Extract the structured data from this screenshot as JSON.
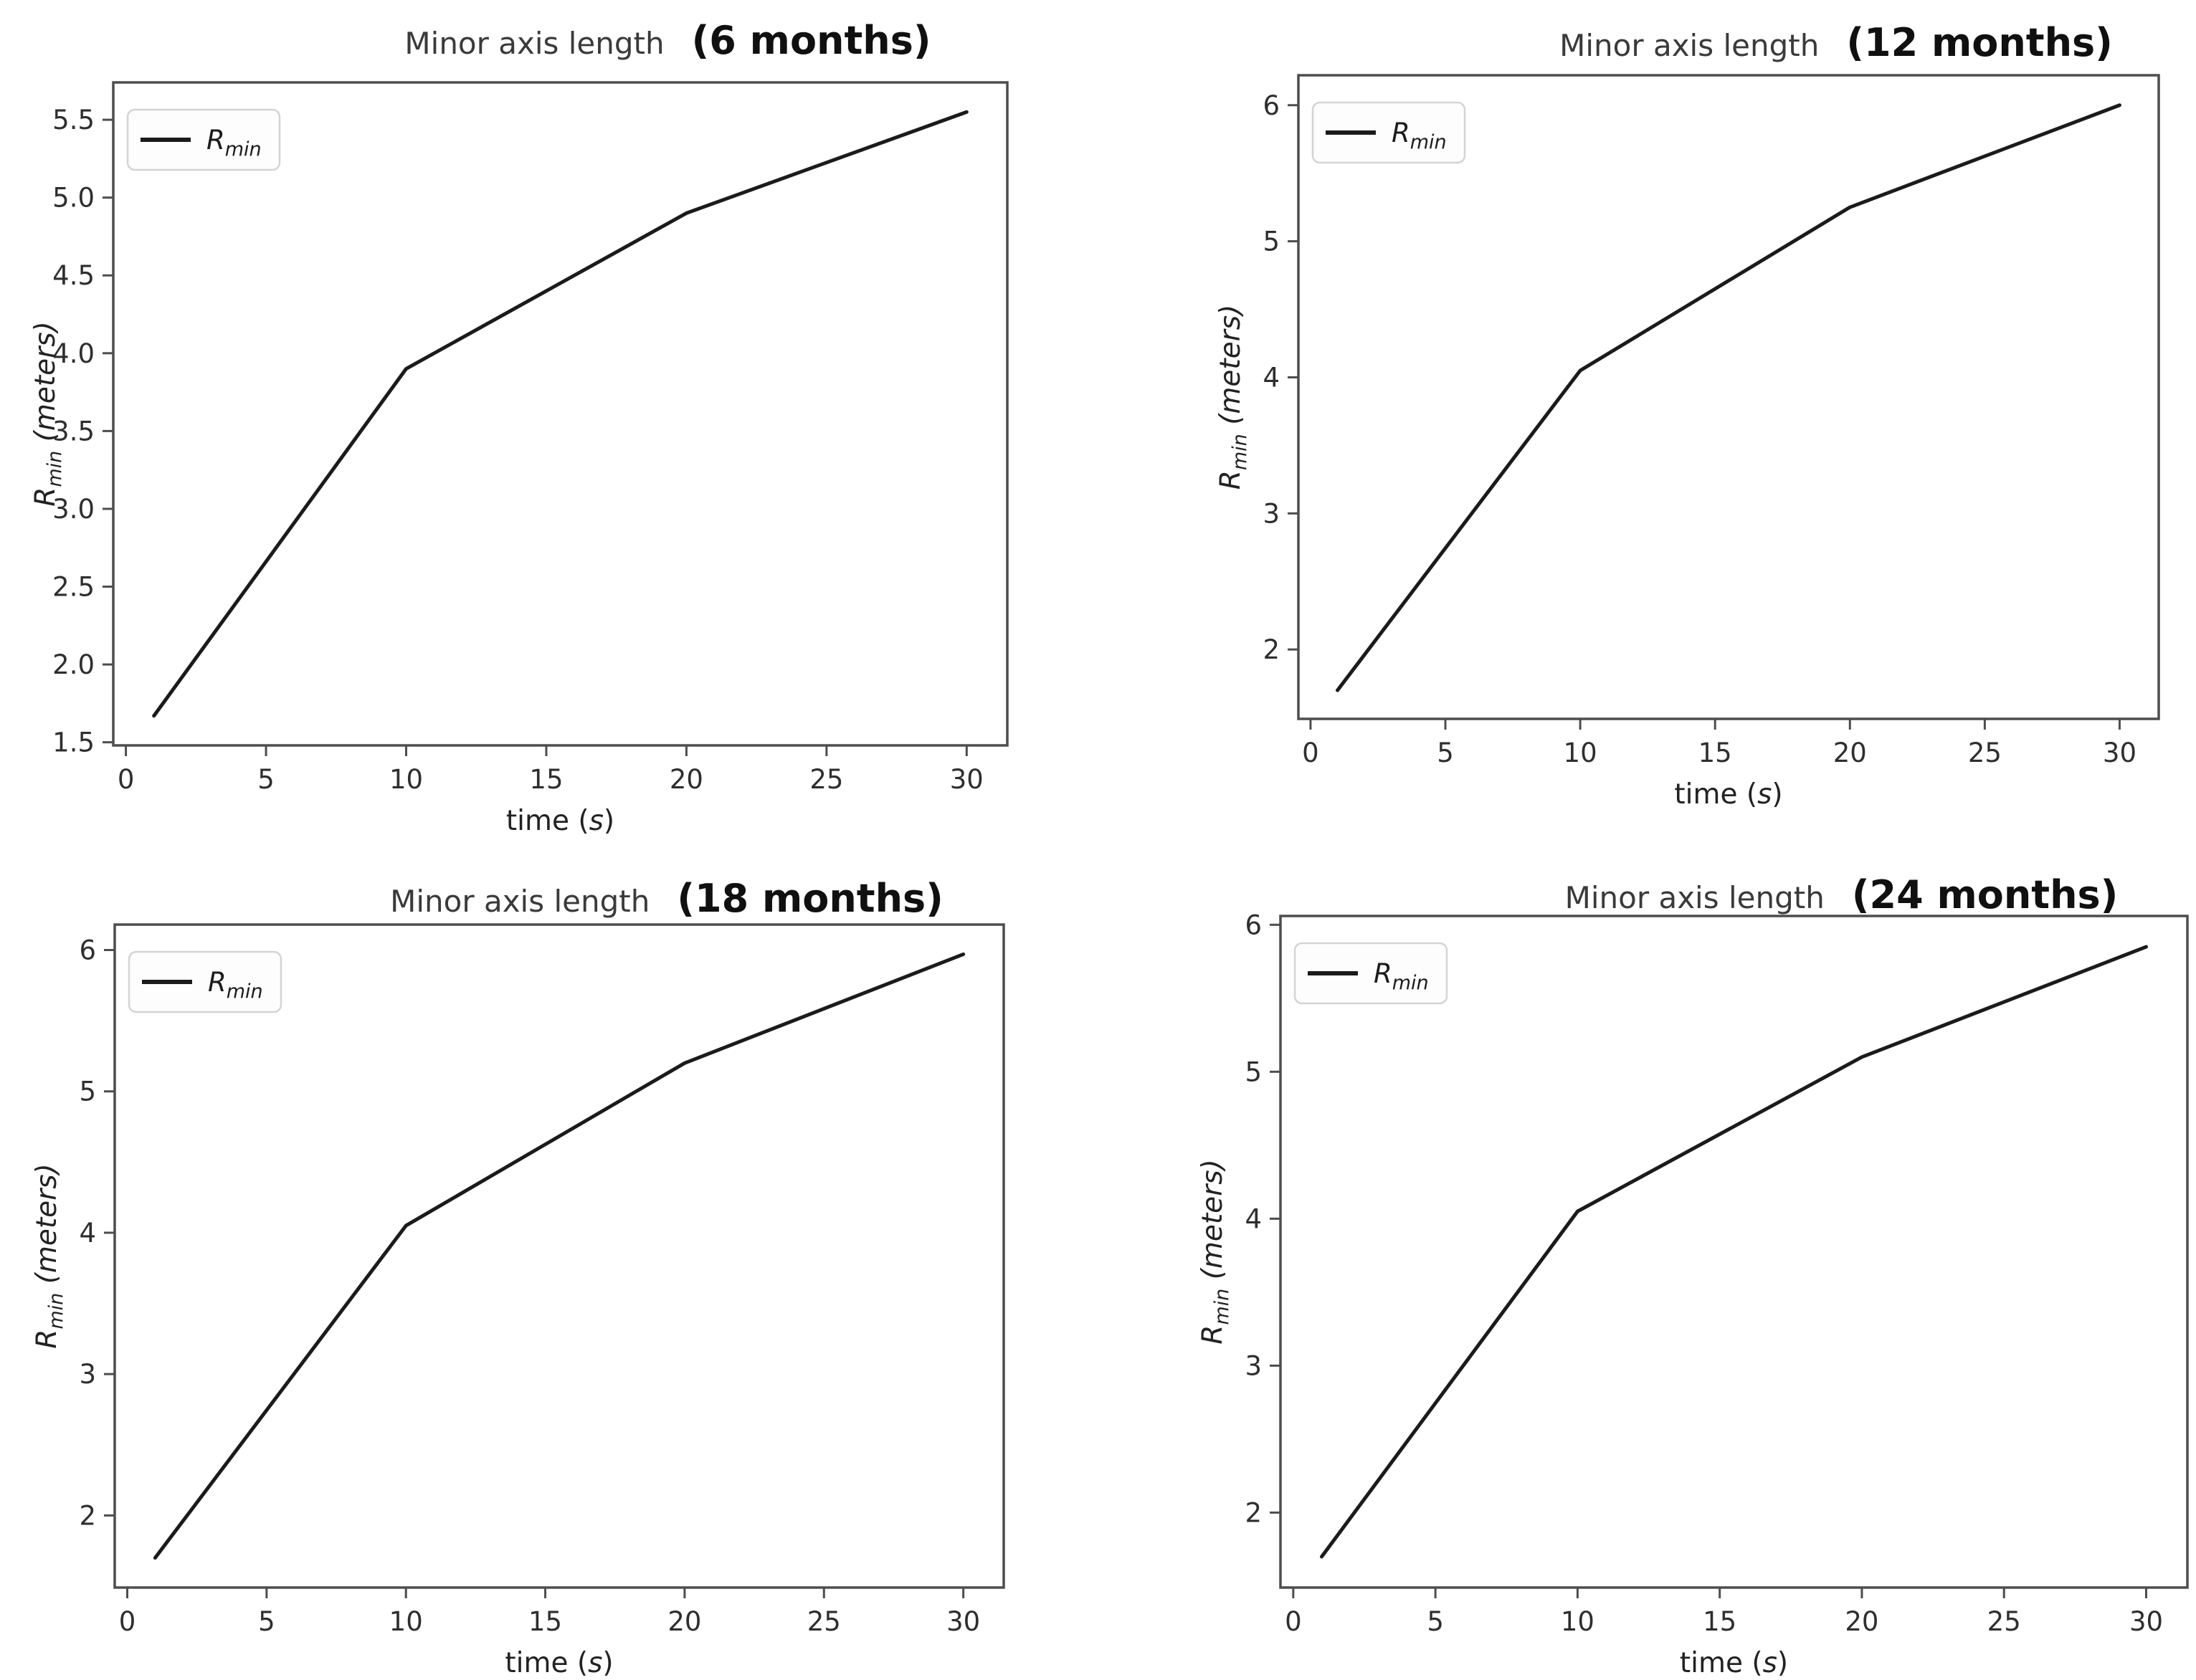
{
  "figure": {
    "background": "#ffffff",
    "panel_count": 4,
    "colors": {
      "line": "#1b1b1b",
      "spine": "#4d4d4d",
      "tick_text": "#2e2e2e",
      "legend_border": "#d4d4d4",
      "legend_fill": "#fdfdfd"
    }
  },
  "chart_data": [
    {
      "type": "line",
      "title": "Minor axis length",
      "subtitle": "(6 months)",
      "xlabel": "time (s)",
      "ylabel": "R_min (meters)",
      "xlabel_parts": {
        "pre": "time (",
        "var": "s",
        "post": ")"
      },
      "ylabel_parts": {
        "main": "R",
        "sub": "min",
        "rest": " (meters)"
      },
      "legend": {
        "position": "upper left",
        "entries": [
          {
            "label": "R_min",
            "main": "R",
            "sub": "min"
          }
        ]
      },
      "grid": false,
      "series": [
        {
          "name": "R_min",
          "x": [
            1,
            10,
            20,
            30
          ],
          "y": [
            1.67,
            3.9,
            4.9,
            5.55
          ]
        }
      ],
      "xlim": [
        -0.45,
        31.45
      ],
      "ylim": [
        1.48,
        5.74
      ],
      "xticks": [
        0,
        5,
        10,
        15,
        20,
        25,
        30
      ],
      "xtick_labels": [
        "0",
        "5",
        "10",
        "15",
        "20",
        "25",
        "30"
      ],
      "yticks": [
        1.5,
        2.0,
        2.5,
        3.0,
        3.5,
        4.0,
        4.5,
        5.0,
        5.5
      ],
      "ytick_labels": [
        "1.5",
        "2.0",
        "2.5",
        "3.0",
        "3.5",
        "4.0",
        "4.5",
        "5.0",
        "5.5"
      ],
      "colors": {
        "line": "#1b1b1b",
        "spine": "#4d4d4d"
      }
    },
    {
      "type": "line",
      "title": "Minor axis length",
      "subtitle": "(12 months)",
      "xlabel": "time (s)",
      "ylabel": "R_min (meters)",
      "xlabel_parts": {
        "pre": "time (",
        "var": "s",
        "post": ")"
      },
      "ylabel_parts": {
        "main": "R",
        "sub": "min",
        "rest": " (meters)"
      },
      "legend": {
        "position": "upper left",
        "entries": [
          {
            "label": "R_min",
            "main": "R",
            "sub": "min"
          }
        ]
      },
      "grid": false,
      "series": [
        {
          "name": "R_min",
          "x": [
            1,
            10,
            20,
            30
          ],
          "y": [
            1.7,
            4.05,
            5.25,
            6.0
          ]
        }
      ],
      "xlim": [
        -0.45,
        31.45
      ],
      "ylim": [
        1.49,
        6.22
      ],
      "xticks": [
        0,
        5,
        10,
        15,
        20,
        25,
        30
      ],
      "xtick_labels": [
        "0",
        "5",
        "10",
        "15",
        "20",
        "25",
        "30"
      ],
      "yticks": [
        2,
        3,
        4,
        5,
        6
      ],
      "ytick_labels": [
        "2",
        "3",
        "4",
        "5",
        "6"
      ],
      "colors": {
        "line": "#1b1b1b",
        "spine": "#4d4d4d"
      }
    },
    {
      "type": "line",
      "title": "Minor axis length",
      "subtitle": "(18 months)",
      "xlabel": "time (s)",
      "ylabel": "R_min (meters)",
      "xlabel_parts": {
        "pre": "time (",
        "var": "s",
        "post": ")"
      },
      "ylabel_parts": {
        "main": "R",
        "sub": "min",
        "rest": " (meters)"
      },
      "legend": {
        "position": "upper left",
        "entries": [
          {
            "label": "R_min",
            "main": "R",
            "sub": "min"
          }
        ]
      },
      "grid": false,
      "series": [
        {
          "name": "R_min",
          "x": [
            1,
            10,
            20,
            30
          ],
          "y": [
            1.7,
            4.05,
            5.2,
            5.97
          ]
        }
      ],
      "xlim": [
        -0.45,
        31.45
      ],
      "ylim": [
        1.49,
        6.18
      ],
      "xticks": [
        0,
        5,
        10,
        15,
        20,
        25,
        30
      ],
      "xtick_labels": [
        "0",
        "5",
        "10",
        "15",
        "20",
        "25",
        "30"
      ],
      "yticks": [
        2,
        3,
        4,
        5,
        6
      ],
      "ytick_labels": [
        "2",
        "3",
        "4",
        "5",
        "6"
      ],
      "colors": {
        "line": "#1b1b1b",
        "spine": "#4d4d4d"
      }
    },
    {
      "type": "line",
      "title": "Minor axis length",
      "subtitle": "(24 months)",
      "xlabel": "time (s)",
      "ylabel": "R_min (meters)",
      "xlabel_parts": {
        "pre": "time (",
        "var": "s",
        "post": ")"
      },
      "ylabel_parts": {
        "main": "R",
        "sub": "min",
        "rest": " (meters)"
      },
      "legend": {
        "position": "upper left",
        "entries": [
          {
            "label": "R_min",
            "main": "R",
            "sub": "min"
          }
        ]
      },
      "grid": false,
      "series": [
        {
          "name": "R_min",
          "x": [
            1,
            10,
            20,
            30
          ],
          "y": [
            1.7,
            4.05,
            5.1,
            5.85
          ]
        }
      ],
      "xlim": [
        -0.45,
        31.45
      ],
      "ylim": [
        1.49,
        6.06
      ],
      "xticks": [
        0,
        5,
        10,
        15,
        20,
        25,
        30
      ],
      "xtick_labels": [
        "0",
        "5",
        "10",
        "15",
        "20",
        "25",
        "30"
      ],
      "yticks": [
        2,
        3,
        4,
        5,
        6
      ],
      "ytick_labels": [
        "2",
        "3",
        "4",
        "5",
        "6"
      ],
      "colors": {
        "line": "#1b1b1b",
        "spine": "#4d4d4d"
      }
    }
  ]
}
